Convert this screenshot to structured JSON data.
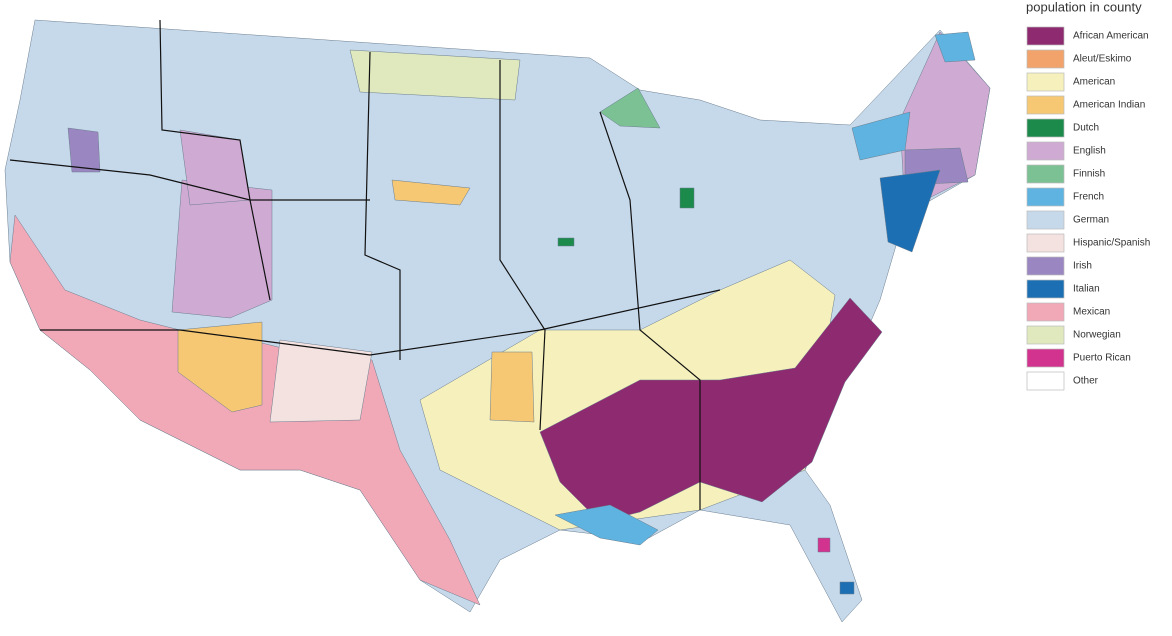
{
  "legend": {
    "title": "population in county",
    "items": [
      {
        "label": "African American",
        "color": "#8e2a6f"
      },
      {
        "label": "Aleut/Eskimo",
        "color": "#f1a36b"
      },
      {
        "label": "American",
        "color": "#f6f1bc"
      },
      {
        "label": "American Indian",
        "color": "#f6c873"
      },
      {
        "label": "Dutch",
        "color": "#1b8a4b"
      },
      {
        "label": "English",
        "color": "#cfaad3"
      },
      {
        "label": "Finnish",
        "color": "#7cc194"
      },
      {
        "label": "French",
        "color": "#5fb3e0"
      },
      {
        "label": "German",
        "color": "#c6d9eb"
      },
      {
        "label": "Hispanic/Spanish",
        "color": "#f3e2e0"
      },
      {
        "label": "Irish",
        "color": "#9a86c0"
      },
      {
        "label": "Italian",
        "color": "#1d6fb3"
      },
      {
        "label": "Mexican",
        "color": "#f1a9b7"
      },
      {
        "label": "Norwegian",
        "color": "#dfe9bd"
      },
      {
        "label": "Puerto Rican",
        "color": "#d2338f"
      },
      {
        "label": "Other",
        "color": "#ffffff"
      }
    ]
  }
}
